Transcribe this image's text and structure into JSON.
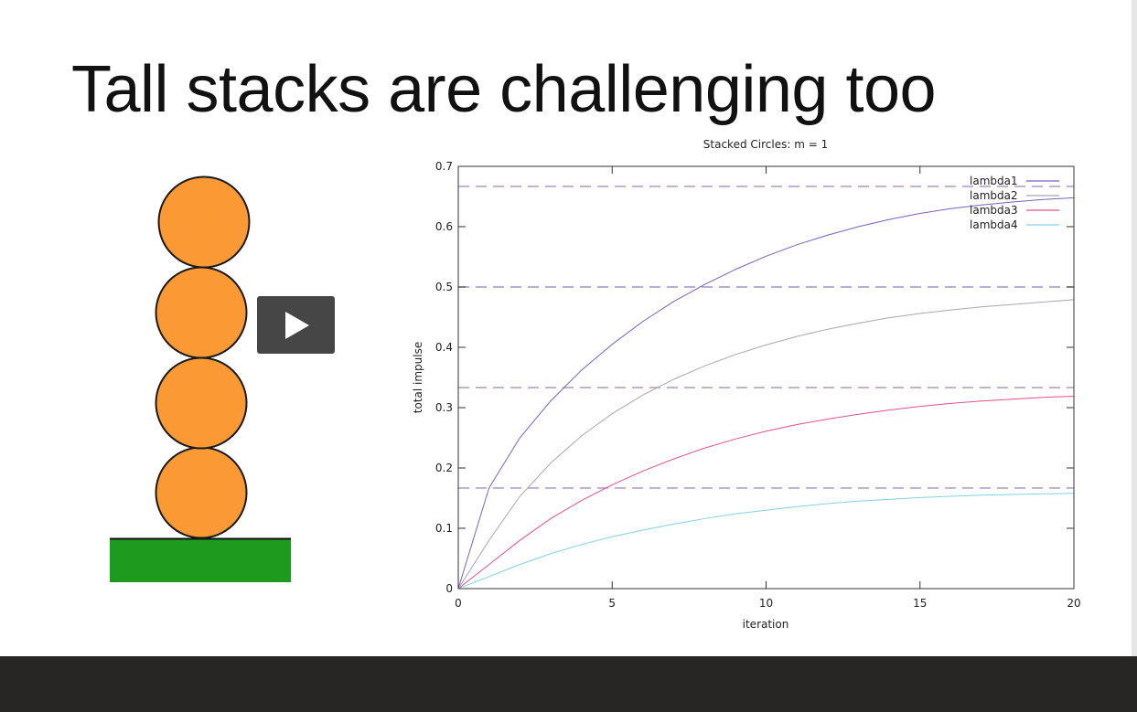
{
  "slide": {
    "title": "Tall stacks are challenging too"
  },
  "stack_figure": {
    "circle_count": 4,
    "circle_color": "#fb9a35",
    "ground_color": "#1e9a1e"
  },
  "video": {
    "play_icon": "play-icon"
  },
  "chart_data": {
    "type": "line",
    "title": "Stacked Circles: m = 1",
    "xlabel": "iteration",
    "ylabel": "total impulse",
    "xlim": [
      0,
      20
    ],
    "ylim": [
      0,
      0.7
    ],
    "xticks": [
      0,
      5,
      10,
      15,
      20
    ],
    "yticks": [
      0,
      0.1,
      0.2,
      0.3,
      0.4,
      0.5,
      0.6,
      0.7
    ],
    "grid": false,
    "legend_position": "top-right",
    "x": [
      0,
      1,
      2,
      3,
      4,
      5,
      6,
      7,
      8,
      9,
      10,
      11,
      12,
      13,
      14,
      15,
      16,
      17,
      18,
      19,
      20
    ],
    "series": [
      {
        "name": "lambda1",
        "color": "#7a5fc9",
        "values": [
          0,
          0.167,
          0.25,
          0.311,
          0.362,
          0.405,
          0.443,
          0.476,
          0.504,
          0.529,
          0.551,
          0.57,
          0.586,
          0.6,
          0.612,
          0.622,
          0.63,
          0.636,
          0.641,
          0.645,
          0.648
        ]
      },
      {
        "name": "lambda2",
        "color": "#a8a8a8",
        "values": [
          0,
          0.08,
          0.153,
          0.208,
          0.253,
          0.29,
          0.321,
          0.347,
          0.369,
          0.388,
          0.404,
          0.418,
          0.43,
          0.44,
          0.449,
          0.456,
          0.462,
          0.467,
          0.471,
          0.475,
          0.479
        ]
      },
      {
        "name": "lambda3",
        "color": "#e8508a",
        "values": [
          0,
          0.04,
          0.08,
          0.116,
          0.146,
          0.172,
          0.195,
          0.215,
          0.233,
          0.248,
          0.261,
          0.272,
          0.281,
          0.289,
          0.296,
          0.302,
          0.307,
          0.311,
          0.314,
          0.317,
          0.319
        ]
      },
      {
        "name": "lambda4",
        "color": "#7fd3e6",
        "values": [
          0,
          0.02,
          0.04,
          0.058,
          0.073,
          0.086,
          0.097,
          0.107,
          0.116,
          0.124,
          0.13,
          0.136,
          0.141,
          0.145,
          0.148,
          0.151,
          0.153,
          0.155,
          0.156,
          0.157,
          0.158
        ]
      }
    ],
    "reference_lines": [
      0.6667,
      0.5,
      0.3333,
      0.1667
    ],
    "reference_line_color": "#a590c4"
  }
}
